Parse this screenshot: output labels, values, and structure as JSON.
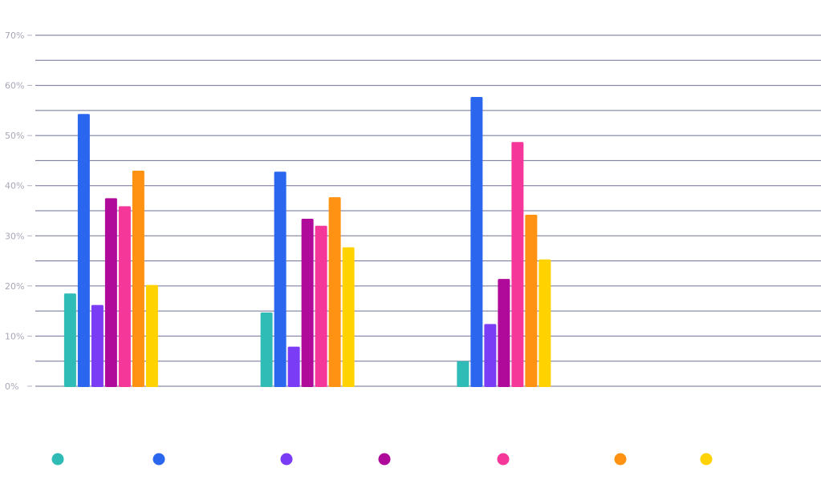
{
  "chart_data": {
    "type": "bar",
    "categories": [
      "",
      "",
      "",
      ""
    ],
    "ylim": [
      0,
      70
    ],
    "y_ticks": [
      0,
      10,
      20,
      30,
      40,
      50,
      60,
      70
    ],
    "y_tick_labels": [
      "0%",
      "10%",
      "20%",
      "30%",
      "40%",
      "50%",
      "60%",
      "70%"
    ],
    "grid": true,
    "legend_position": "bottom",
    "series": [
      {
        "color": "#2fbcb7",
        "values": [
          18.5,
          14.7,
          5.0,
          null
        ]
      },
      {
        "color": "#2b67ee",
        "values": [
          54.3,
          42.8,
          57.7,
          null
        ]
      },
      {
        "color": "#7a3cf5",
        "values": [
          16.2,
          7.9,
          12.4,
          null
        ]
      },
      {
        "color": "#b00a9a",
        "values": [
          37.5,
          33.4,
          21.4,
          null
        ]
      },
      {
        "color": "#f5379a",
        "values": [
          35.9,
          32.0,
          48.7,
          null
        ]
      },
      {
        "color": "#ff9212",
        "values": [
          43.0,
          37.7,
          34.2,
          null
        ]
      },
      {
        "color": "#ffd200",
        "values": [
          20.2,
          27.7,
          25.3,
          null
        ]
      }
    ]
  }
}
